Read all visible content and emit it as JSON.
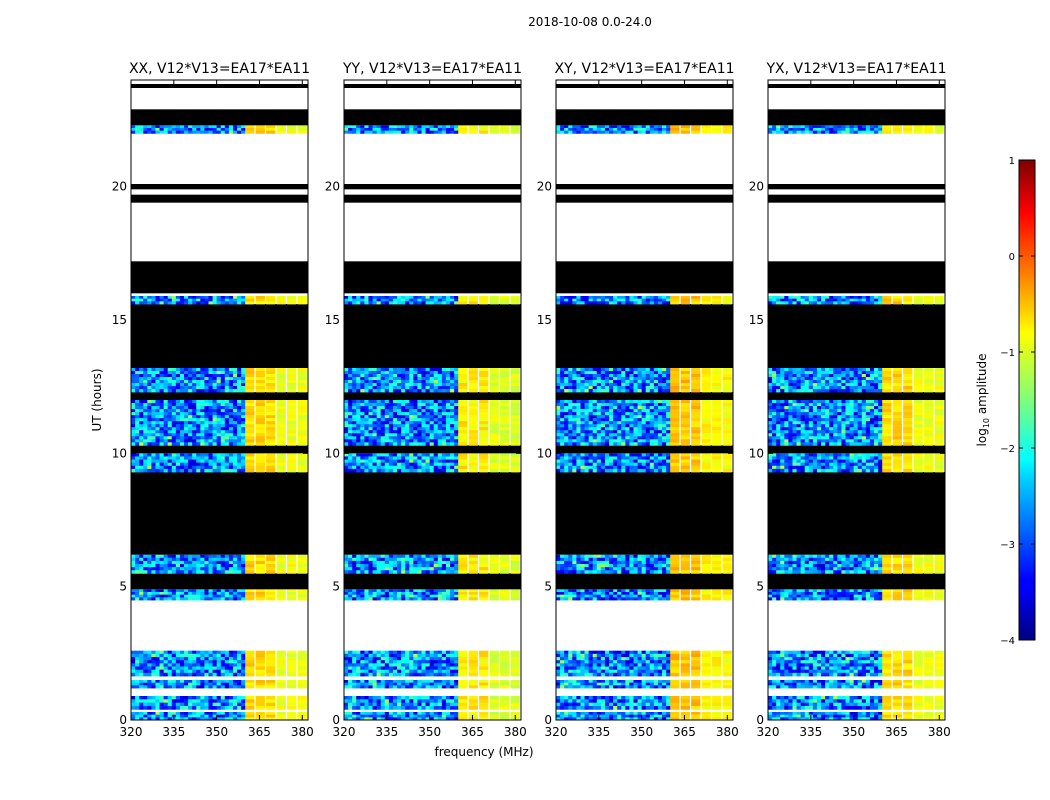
{
  "suptitle": "2018-10-08 0.0-24.0",
  "colors": {
    "background": "#ffffff",
    "flagged": "#000000",
    "unobserved": "#ffffff",
    "frame": "#000000"
  },
  "chart_data": {
    "type": "heatmap",
    "xlabel": "frequency (MHz)",
    "ylabel": "UT (hours)",
    "xlim": [
      320,
      382
    ],
    "ylim": [
      0,
      24
    ],
    "xticks": [
      320,
      335,
      350,
      365,
      380
    ],
    "yticks": [
      0,
      5,
      10,
      15,
      20
    ],
    "band_start_mhz": 360,
    "colorbar": {
      "label_prefix": "log",
      "label_sub": "10",
      "label_suffix": " amplitude",
      "range": [
        -4,
        1
      ],
      "ticks": [
        1,
        0,
        -1,
        -2,
        -3,
        -4
      ],
      "tick_labels": [
        "1",
        "0",
        "−1",
        "−2",
        "−3",
        "−4"
      ],
      "colormap": "jet"
    },
    "panels": [
      {
        "title": "XX, V12*V13=EA17*EA11",
        "band_level": -0.9
      },
      {
        "title": "YY, V12*V13=EA17*EA11",
        "band_level": -1.0
      },
      {
        "title": "XY, V12*V13=EA17*EA11",
        "band_level": -0.8
      },
      {
        "title": "YX, V12*V13=EA17*EA11",
        "band_level": -0.9
      }
    ],
    "time_segments": [
      {
        "t0": 0.0,
        "t1": 0.3,
        "state": "data"
      },
      {
        "t0": 0.3,
        "t1": 0.4,
        "state": "empty"
      },
      {
        "t0": 0.4,
        "t1": 0.9,
        "state": "data"
      },
      {
        "t0": 0.9,
        "t1": 1.2,
        "state": "empty"
      },
      {
        "t0": 1.2,
        "t1": 1.5,
        "state": "data"
      },
      {
        "t0": 1.5,
        "t1": 1.65,
        "state": "empty"
      },
      {
        "t0": 1.65,
        "t1": 2.6,
        "state": "data"
      },
      {
        "t0": 2.6,
        "t1": 4.5,
        "state": "empty"
      },
      {
        "t0": 4.5,
        "t1": 4.9,
        "state": "data"
      },
      {
        "t0": 4.9,
        "t1": 5.5,
        "state": "flagged"
      },
      {
        "t0": 5.5,
        "t1": 6.2,
        "state": "data"
      },
      {
        "t0": 6.2,
        "t1": 9.3,
        "state": "flagged"
      },
      {
        "t0": 9.3,
        "t1": 10.0,
        "state": "data"
      },
      {
        "t0": 10.0,
        "t1": 10.3,
        "state": "flagged"
      },
      {
        "t0": 10.3,
        "t1": 12.0,
        "state": "data"
      },
      {
        "t0": 12.0,
        "t1": 12.3,
        "state": "flagged"
      },
      {
        "t0": 12.3,
        "t1": 13.2,
        "state": "data"
      },
      {
        "t0": 13.2,
        "t1": 15.6,
        "state": "flagged"
      },
      {
        "t0": 15.6,
        "t1": 15.9,
        "state": "data"
      },
      {
        "t0": 15.9,
        "t1": 16.0,
        "state": "empty"
      },
      {
        "t0": 16.0,
        "t1": 17.2,
        "state": "flagged"
      },
      {
        "t0": 17.2,
        "t1": 19.4,
        "state": "empty"
      },
      {
        "t0": 19.4,
        "t1": 19.7,
        "state": "flagged"
      },
      {
        "t0": 19.7,
        "t1": 19.9,
        "state": "empty"
      },
      {
        "t0": 19.9,
        "t1": 20.1,
        "state": "flagged"
      },
      {
        "t0": 20.1,
        "t1": 22.0,
        "state": "empty"
      },
      {
        "t0": 22.0,
        "t1": 22.3,
        "state": "data"
      },
      {
        "t0": 22.3,
        "t1": 22.9,
        "state": "flagged"
      },
      {
        "t0": 22.9,
        "t1": 23.7,
        "state": "empty"
      },
      {
        "t0": 23.7,
        "t1": 23.85,
        "state": "flagged"
      },
      {
        "t0": 23.85,
        "t1": 24.0,
        "state": "empty"
      }
    ]
  }
}
